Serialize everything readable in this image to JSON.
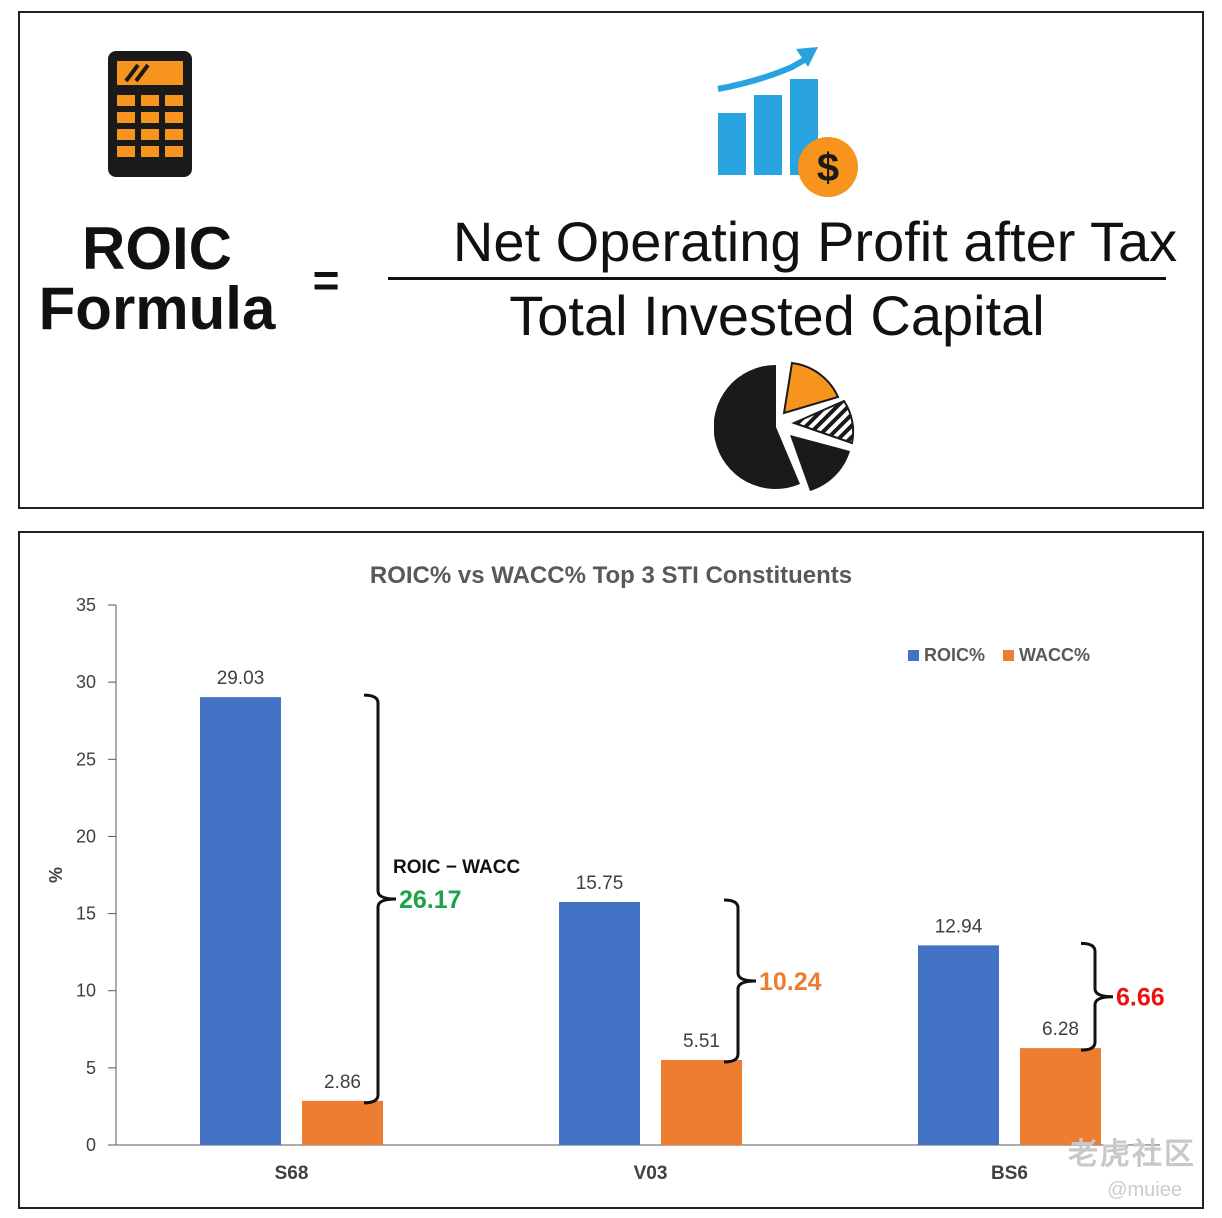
{
  "formula": {
    "title_line1": "ROIC",
    "title_line2": "Formula",
    "equals": "=",
    "numerator": "Net Operating Profit after Tax",
    "denominator": "Total Invested Capital",
    "icons": [
      "calculator-icon",
      "growth-chart-dollar-icon",
      "pie-chart-icon"
    ]
  },
  "chart_data": {
    "type": "bar",
    "title": "ROIC%  vs WACC%  Top 3 STI Constituents",
    "xlabel": "",
    "ylabel": "%",
    "ylim": [
      0,
      35
    ],
    "yticks": [
      0,
      5,
      10,
      15,
      20,
      25,
      30,
      35
    ],
    "categories": [
      "S68",
      "V03",
      "BS6"
    ],
    "series": [
      {
        "name": "ROIC%",
        "color": "#4472C4",
        "values": [
          29.03,
          15.75,
          12.94
        ]
      },
      {
        "name": "WACC%",
        "color": "#ED7D31",
        "values": [
          2.86,
          5.51,
          6.28
        ]
      }
    ],
    "legend_position": "top-right",
    "grid": false,
    "annotations": [
      {
        "category": "S68",
        "label": "ROIC − WACC",
        "value": "26.17",
        "color": "#1BA34A"
      },
      {
        "category": "V03",
        "label": "",
        "value": "10.24",
        "color": "#ED7D31"
      },
      {
        "category": "BS6",
        "label": "",
        "value": "6.66",
        "color": "#EE1111"
      }
    ]
  },
  "watermark": {
    "brand": "老虎社区",
    "handle": "@muiee"
  }
}
